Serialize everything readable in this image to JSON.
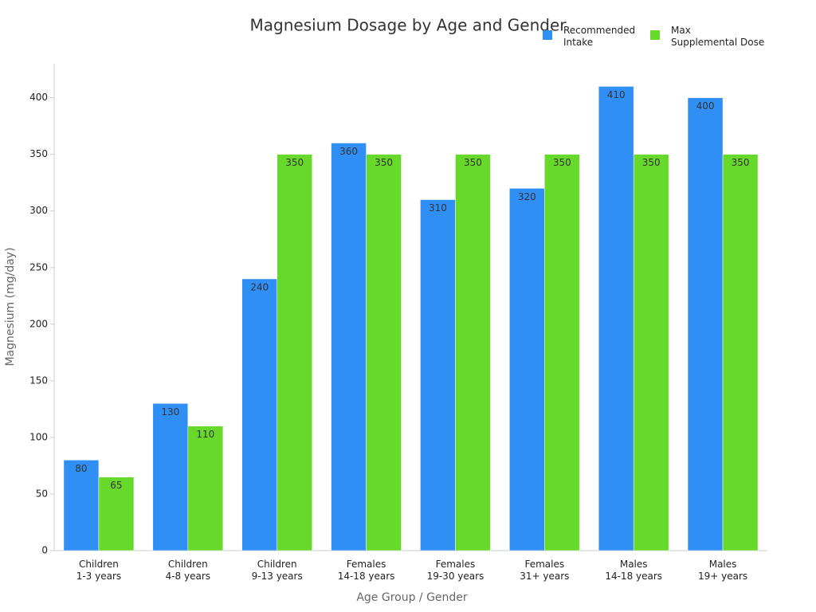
{
  "chart_data": {
    "type": "bar",
    "title": "Magnesium Dosage by Age and Gender",
    "x_label": "Age Group / Gender",
    "y_label": "Magnesium (mg/day)",
    "categories": [
      "Children\n1-3 years",
      "Children\n4-8 years",
      "Children\n9-13 years",
      "Females\n14-18 years",
      "Females\n19-30 years",
      "Females\n31+ years",
      "Males\n14-18 years",
      "Males\n19+ years"
    ],
    "series": [
      {
        "name": "Recommended\nIntake",
        "color": "#2f8ff5",
        "values": [
          80,
          130,
          240,
          360,
          310,
          320,
          410,
          400
        ]
      },
      {
        "name": "Max\nSupplemental Dose",
        "color": "#66d92a",
        "values": [
          65,
          110,
          350,
          350,
          350,
          350,
          350,
          350
        ]
      }
    ],
    "ylim": [
      0,
      430
    ],
    "yticks": [
      0,
      50,
      100,
      150,
      200,
      250,
      300,
      350,
      400
    ],
    "grid": false
  }
}
